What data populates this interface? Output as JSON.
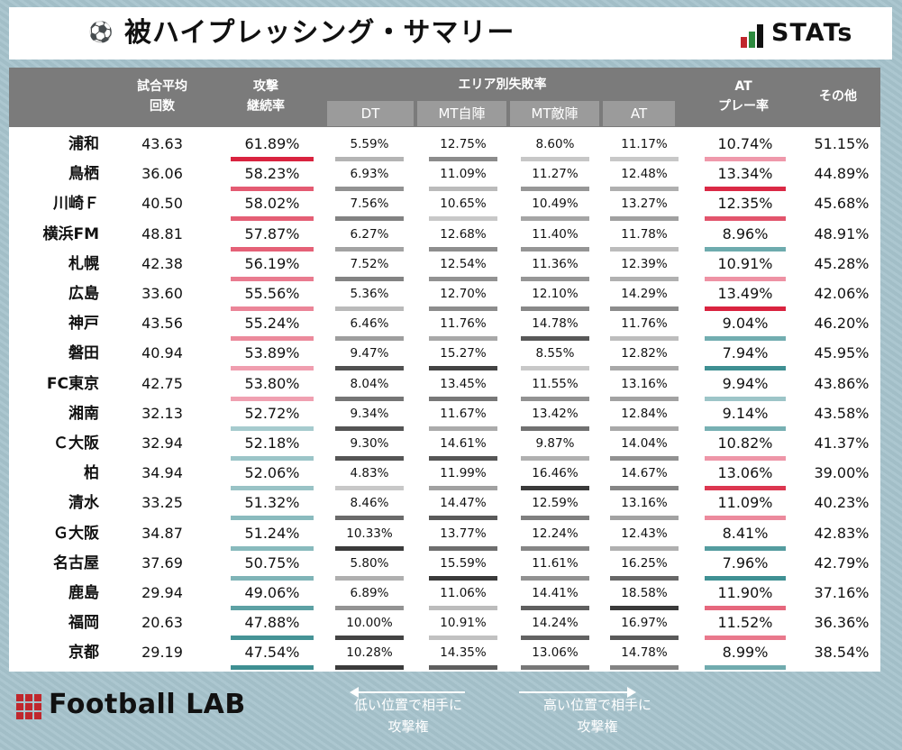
{
  "header": {
    "title": "被ハイプレッシング・サマリー",
    "ball_icon": "soccer-ball-icon",
    "brand": "STATs"
  },
  "chart_data": {
    "type": "table",
    "columns": {
      "team": "",
      "matches": "試合平均\n回数",
      "continuation": "攻撃\n継続率",
      "area_group": "エリア別失敗率",
      "dt": "DT",
      "mt_own": "MT自陣",
      "mt_opp": "MT敵陣",
      "at": "AT",
      "at_play": "AT\nプレー率",
      "other": "その他"
    },
    "rows": [
      {
        "team": "浦和",
        "matches": "43.63",
        "continuation": "61.89%",
        "dt": "5.59%",
        "mt_own": "12.75%",
        "mt_opp": "8.60%",
        "at": "11.17%",
        "at_play": "10.74%",
        "other": "51.15%"
      },
      {
        "team": "鳥栖",
        "matches": "36.06",
        "continuation": "58.23%",
        "dt": "6.93%",
        "mt_own": "11.09%",
        "mt_opp": "11.27%",
        "at": "12.48%",
        "at_play": "13.34%",
        "other": "44.89%"
      },
      {
        "team": "川崎Ｆ",
        "matches": "40.50",
        "continuation": "58.02%",
        "dt": "7.56%",
        "mt_own": "10.65%",
        "mt_opp": "10.49%",
        "at": "13.27%",
        "at_play": "12.35%",
        "other": "45.68%"
      },
      {
        "team": "横浜FM",
        "matches": "48.81",
        "continuation": "57.87%",
        "dt": "6.27%",
        "mt_own": "12.68%",
        "mt_opp": "11.40%",
        "at": "11.78%",
        "at_play": "8.96%",
        "other": "48.91%"
      },
      {
        "team": "札幌",
        "matches": "42.38",
        "continuation": "56.19%",
        "dt": "7.52%",
        "mt_own": "12.54%",
        "mt_opp": "11.36%",
        "at": "12.39%",
        "at_play": "10.91%",
        "other": "45.28%"
      },
      {
        "team": "広島",
        "matches": "33.60",
        "continuation": "55.56%",
        "dt": "5.36%",
        "mt_own": "12.70%",
        "mt_opp": "12.10%",
        "at": "14.29%",
        "at_play": "13.49%",
        "other": "42.06%"
      },
      {
        "team": "神戸",
        "matches": "43.56",
        "continuation": "55.24%",
        "dt": "6.46%",
        "mt_own": "11.76%",
        "mt_opp": "14.78%",
        "at": "11.76%",
        "at_play": "9.04%",
        "other": "46.20%"
      },
      {
        "team": "磐田",
        "matches": "40.94",
        "continuation": "53.89%",
        "dt": "9.47%",
        "mt_own": "15.27%",
        "mt_opp": "8.55%",
        "at": "12.82%",
        "at_play": "7.94%",
        "other": "45.95%"
      },
      {
        "team": "FC東京",
        "matches": "42.75",
        "continuation": "53.80%",
        "dt": "8.04%",
        "mt_own": "13.45%",
        "mt_opp": "11.55%",
        "at": "13.16%",
        "at_play": "9.94%",
        "other": "43.86%"
      },
      {
        "team": "湘南",
        "matches": "32.13",
        "continuation": "52.72%",
        "dt": "9.34%",
        "mt_own": "11.67%",
        "mt_opp": "13.42%",
        "at": "12.84%",
        "at_play": "9.14%",
        "other": "43.58%"
      },
      {
        "team": "Ｃ大阪",
        "matches": "32.94",
        "continuation": "52.18%",
        "dt": "9.30%",
        "mt_own": "14.61%",
        "mt_opp": "9.87%",
        "at": "14.04%",
        "at_play": "10.82%",
        "other": "41.37%"
      },
      {
        "team": "柏",
        "matches": "34.94",
        "continuation": "52.06%",
        "dt": "4.83%",
        "mt_own": "11.99%",
        "mt_opp": "16.46%",
        "at": "14.67%",
        "at_play": "13.06%",
        "other": "39.00%"
      },
      {
        "team": "清水",
        "matches": "33.25",
        "continuation": "51.32%",
        "dt": "8.46%",
        "mt_own": "14.47%",
        "mt_opp": "12.59%",
        "at": "13.16%",
        "at_play": "11.09%",
        "other": "40.23%"
      },
      {
        "team": "Ｇ大阪",
        "matches": "34.87",
        "continuation": "51.24%",
        "dt": "10.33%",
        "mt_own": "13.77%",
        "mt_opp": "12.24%",
        "at": "12.43%",
        "at_play": "8.41%",
        "other": "42.83%"
      },
      {
        "team": "名古屋",
        "matches": "37.69",
        "continuation": "50.75%",
        "dt": "5.80%",
        "mt_own": "15.59%",
        "mt_opp": "11.61%",
        "at": "16.25%",
        "at_play": "7.96%",
        "other": "42.79%"
      },
      {
        "team": "鹿島",
        "matches": "29.94",
        "continuation": "49.06%",
        "dt": "6.89%",
        "mt_own": "11.06%",
        "mt_opp": "14.41%",
        "at": "18.58%",
        "at_play": "11.90%",
        "other": "37.16%"
      },
      {
        "team": "福岡",
        "matches": "20.63",
        "continuation": "47.88%",
        "dt": "10.00%",
        "mt_own": "10.91%",
        "mt_opp": "14.24%",
        "at": "16.97%",
        "at_play": "11.52%",
        "other": "36.36%"
      },
      {
        "team": "京都",
        "matches": "29.19",
        "continuation": "47.54%",
        "dt": "10.28%",
        "mt_own": "14.35%",
        "mt_opp": "13.06%",
        "at": "14.78%",
        "at_play": "8.99%",
        "other": "38.54%"
      }
    ]
  },
  "footer": {
    "brand": "Football LAB",
    "left_note": "低い位置で相手に\n攻撃権",
    "right_note": "高い位置で相手に\n攻撃権"
  },
  "colors": {
    "red": "#d9233f",
    "pink": "#f2a9b9",
    "teal": "#3e8f92",
    "light_teal": "#bfd9dc",
    "dark_gray": "#3a3a3a",
    "light_gray": "#c8c8c8",
    "brand_red": "#c0272d",
    "brand_green": "#2d8a3e"
  }
}
